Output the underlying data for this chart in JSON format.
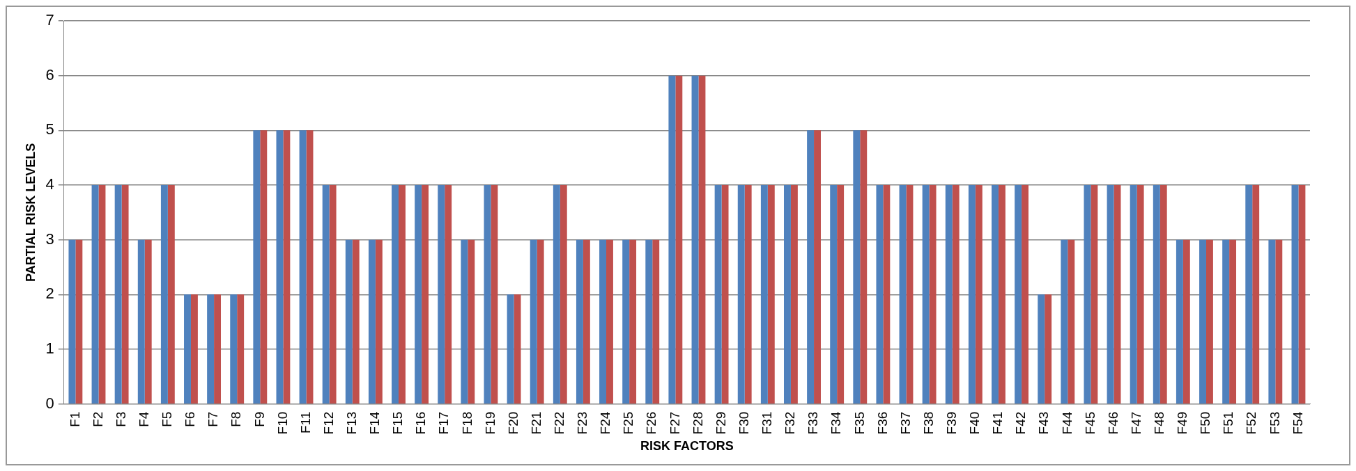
{
  "chart_data": {
    "type": "bar",
    "xlabel": "RISK FACTORS",
    "ylabel": "PARTIAL RISK LEVELS",
    "categories": [
      "F1",
      "F2",
      "F3",
      "F4",
      "F5",
      "F6",
      "F7",
      "F8",
      "F9",
      "F10",
      "F11",
      "F12",
      "F13",
      "F14",
      "F15",
      "F16",
      "F17",
      "F18",
      "F19",
      "F20",
      "F21",
      "F22",
      "F23",
      "F24",
      "F25",
      "F26",
      "F27",
      "F28",
      "F29",
      "F30",
      "F31",
      "F32",
      "F33",
      "F34",
      "F35",
      "F36",
      "F37",
      "F38",
      "F39",
      "F40",
      "F41",
      "F42",
      "F43",
      "F44",
      "F45",
      "F46",
      "F47",
      "F48",
      "F49",
      "F50",
      "F51",
      "F52",
      "F53",
      "F54"
    ],
    "series": [
      {
        "color": "#4f81bd",
        "values": [
          3,
          4,
          4,
          3,
          4,
          2,
          2,
          2,
          5,
          5,
          5,
          4,
          3,
          3,
          4,
          4,
          4,
          3,
          4,
          2,
          3,
          4,
          3,
          3,
          3,
          3,
          6,
          6,
          4,
          4,
          4,
          4,
          5,
          4,
          5,
          4,
          4,
          4,
          4,
          4,
          4,
          4,
          2,
          3,
          4,
          4,
          4,
          4,
          3,
          3,
          3,
          4,
          3,
          4
        ]
      },
      {
        "color": "#c0504d",
        "values": [
          3,
          4,
          4,
          3,
          4,
          2,
          2,
          2,
          5,
          5,
          5,
          4,
          3,
          3,
          4,
          4,
          4,
          3,
          4,
          2,
          3,
          4,
          3,
          3,
          3,
          3,
          6,
          6,
          4,
          4,
          4,
          4,
          5,
          4,
          5,
          4,
          4,
          4,
          4,
          4,
          4,
          4,
          2,
          3,
          4,
          4,
          4,
          4,
          3,
          3,
          3,
          4,
          3,
          4
        ]
      }
    ],
    "ylim": [
      0,
      7
    ],
    "yticks": [
      0,
      1,
      2,
      3,
      4,
      5,
      6,
      7
    ],
    "grid": "y",
    "legend": false
  }
}
